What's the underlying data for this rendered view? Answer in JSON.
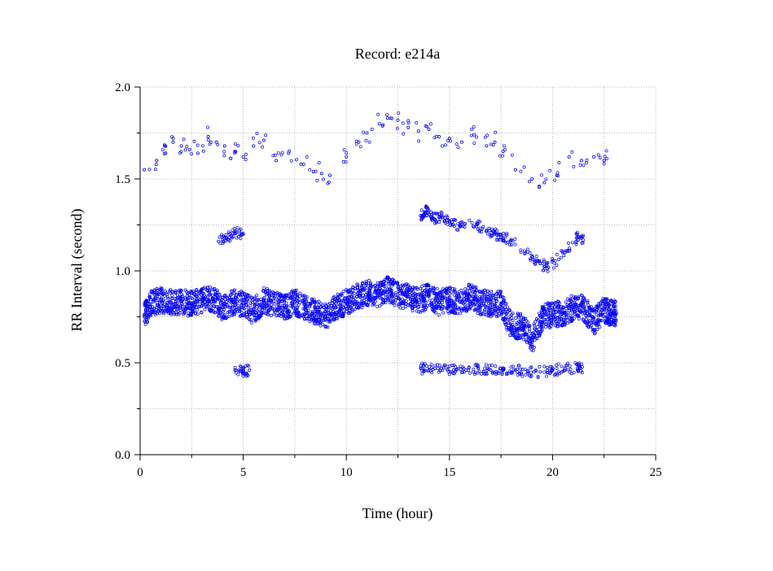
{
  "chart_data": {
    "type": "scatter",
    "title": "Record:  e214a",
    "xlabel": "Time (hour)",
    "ylabel": "RR Interval (second)",
    "xlim": [
      0,
      25
    ],
    "ylim": [
      0,
      2
    ],
    "xticks": [
      0,
      5,
      10,
      15,
      20,
      25
    ],
    "yticks": [
      0.0,
      0.5,
      1.0,
      1.5,
      2.0
    ],
    "xtick_labels": [
      "0",
      "5",
      "10",
      "15",
      "20",
      "25"
    ],
    "ytick_labels": [
      "0.0",
      "0.5",
      "1.0",
      "1.5",
      "2.0"
    ],
    "grid": true,
    "marker_color": "#0000ff",
    "series": [
      {
        "name": "",
        "x": [
          0.2,
          0.5,
          1.0,
          1.5,
          2.0,
          2.5,
          3.0,
          3.5,
          4.0,
          4.5,
          5.0,
          5.5,
          6.0,
          6.5,
          7.0,
          7.5,
          8.0,
          8.5,
          9.0,
          9.5,
          10.0,
          10.5,
          11.0,
          11.5,
          12.0,
          12.5,
          13.0,
          13.5,
          14.0,
          14.5,
          15.0,
          15.5,
          16.0,
          16.5,
          17.0,
          17.5,
          18.0,
          18.5,
          19.0,
          19.5,
          20.0,
          20.5,
          21.0,
          21.5,
          22.0,
          22.5,
          22.8
        ],
        "y": [
          0.76,
          0.82,
          0.84,
          0.83,
          0.83,
          0.82,
          0.84,
          0.85,
          0.8,
          0.83,
          0.82,
          0.78,
          0.84,
          0.82,
          0.8,
          0.83,
          0.8,
          0.78,
          0.75,
          0.8,
          0.83,
          0.86,
          0.88,
          0.87,
          0.9,
          0.87,
          0.86,
          0.84,
          0.86,
          0.83,
          0.84,
          0.83,
          0.86,
          0.83,
          0.82,
          0.82,
          0.7,
          0.7,
          0.62,
          0.75,
          0.76,
          0.77,
          0.8,
          0.8,
          0.72,
          0.79,
          0.77
        ]
      },
      {
        "name": "",
        "x": [
          3.8,
          4.2,
          4.6,
          5.0,
          13.6,
          13.8,
          14.0,
          14.3,
          14.6,
          15.0,
          15.5,
          16.3,
          16.8,
          17.2,
          17.6,
          18.0,
          19.0,
          19.4,
          19.8,
          20.6,
          21.2
        ],
        "y": [
          1.16,
          1.18,
          1.21,
          1.2,
          1.3,
          1.32,
          1.33,
          1.28,
          1.3,
          1.27,
          1.24,
          1.25,
          1.22,
          1.2,
          1.18,
          1.17,
          1.08,
          1.04,
          1.02,
          1.1,
          1.18
        ]
      },
      {
        "name": "",
        "x": [
          4.6,
          5.0,
          5.3,
          13.6,
          14.0,
          14.6,
          15.2,
          15.8,
          16.4,
          17.0,
          17.6,
          18.2,
          18.8,
          19.4,
          20.0,
          20.6,
          21.2
        ],
        "y": [
          0.46,
          0.45,
          0.46,
          0.47,
          0.46,
          0.47,
          0.46,
          0.46,
          0.47,
          0.46,
          0.46,
          0.46,
          0.45,
          0.45,
          0.46,
          0.47,
          0.47
        ]
      },
      {
        "name": "",
        "x": [
          0.2,
          0.8,
          1.2,
          1.6,
          2.0,
          2.4,
          2.8,
          3.3,
          3.7,
          4.1,
          4.6,
          5.0,
          5.5,
          6.0,
          6.6,
          7.2,
          7.8,
          8.4,
          8.8,
          9.2,
          10.0,
          10.6,
          11.0,
          11.6,
          12.0,
          12.5,
          13.0,
          13.5,
          14.0,
          14.5,
          15.0,
          15.6,
          16.2,
          16.8,
          17.2,
          17.6,
          18.2,
          19.0,
          19.6,
          20.2,
          20.8,
          21.4,
          22.0,
          22.5
        ],
        "y": [
          1.55,
          1.6,
          1.68,
          1.7,
          1.68,
          1.66,
          1.64,
          1.73,
          1.7,
          1.68,
          1.65,
          1.62,
          1.68,
          1.71,
          1.6,
          1.64,
          1.58,
          1.54,
          1.53,
          1.52,
          1.62,
          1.7,
          1.75,
          1.8,
          1.83,
          1.82,
          1.78,
          1.76,
          1.77,
          1.73,
          1.72,
          1.7,
          1.74,
          1.68,
          1.7,
          1.65,
          1.55,
          1.5,
          1.48,
          1.52,
          1.62,
          1.6,
          1.62,
          1.6
        ]
      }
    ]
  }
}
